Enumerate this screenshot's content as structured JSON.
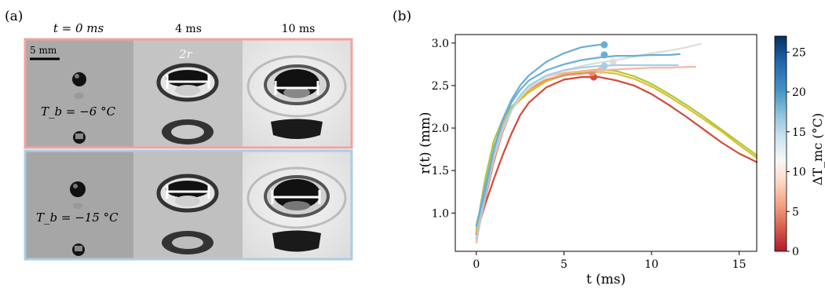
{
  "panel_a": {
    "label": "(a)",
    "col_headers": [
      "t = 0 ms",
      "4 ms",
      "10 ms"
    ],
    "scale_bar": "5 mm",
    "diameter_label": "2r",
    "rows": [
      {
        "temp_label": "T_b = −6 °C",
        "frame_color": "#f0a3a0"
      },
      {
        "temp_label": "T_b = −15 °C",
        "frame_color": "#a9cde6"
      }
    ]
  },
  "panel_b": {
    "label": "(b)"
  },
  "chart_data": {
    "type": "line",
    "xlabel": "t (ms)",
    "ylabel": "r(t) (mm)",
    "xlim": [
      -1.2,
      16
    ],
    "ylim": [
      0.55,
      3.1
    ],
    "xticks": [
      0,
      5,
      10,
      15
    ],
    "yticks": [
      1.0,
      1.5,
      2.0,
      2.5,
      3.0
    ],
    "grid": false,
    "colorbar": {
      "label": "ΔT_mc (°C)",
      "range": [
        0,
        27
      ],
      "ticks": [
        0,
        5,
        10,
        15,
        20,
        25
      ],
      "colormap": [
        "#b2182b",
        "#d6604d",
        "#f4a582",
        "#fddbc7",
        "#f7f7f7",
        "#d1e5f0",
        "#92c5de",
        "#4393c3",
        "#2166ac",
        "#053061"
      ]
    },
    "series": [
      {
        "color": "#d24a3b",
        "x": [
          0,
          0.5,
          1.0,
          1.5,
          2.0,
          2.5,
          3.0,
          4.0,
          5.0,
          6.0,
          7.0,
          8.0,
          9.0,
          10.0,
          11.0,
          12.0,
          13.0,
          14.0,
          15.0,
          16.0
        ],
        "y": [
          0.75,
          1.1,
          1.4,
          1.68,
          1.93,
          2.15,
          2.3,
          2.48,
          2.57,
          2.6,
          2.6,
          2.56,
          2.5,
          2.4,
          2.27,
          2.13,
          1.98,
          1.83,
          1.7,
          1.6
        ],
        "marker": [
          6.7,
          2.6
        ]
      },
      {
        "color": "#a9c93a",
        "x": [
          0,
          0.5,
          1.0,
          1.5,
          2.0,
          2.5,
          3.0,
          4.0,
          5.0,
          6.0,
          7.0,
          8.0,
          9.0,
          10.0,
          11.0,
          12.0,
          13.0,
          14.0,
          15.0,
          16.0
        ],
        "y": [
          0.8,
          1.4,
          1.85,
          2.1,
          2.25,
          2.35,
          2.43,
          2.56,
          2.63,
          2.67,
          2.69,
          2.67,
          2.61,
          2.52,
          2.4,
          2.27,
          2.13,
          1.98,
          1.83,
          1.68
        ]
      },
      {
        "color": "#e2bd2c",
        "x": [
          0,
          0.5,
          1.0,
          1.5,
          2.0,
          2.5,
          3.0,
          4.0,
          5.0,
          6.0,
          7.0,
          8.0,
          9.0,
          10.0,
          11.0,
          12.0,
          13.0,
          14.0,
          15.0,
          16.0
        ],
        "y": [
          0.78,
          1.3,
          1.78,
          2.05,
          2.22,
          2.33,
          2.42,
          2.55,
          2.62,
          2.65,
          2.66,
          2.64,
          2.58,
          2.49,
          2.37,
          2.24,
          2.1,
          1.96,
          1.8,
          1.65
        ]
      },
      {
        "color": "#ef8b6e",
        "x": [
          0,
          0.5,
          1.0,
          1.5,
          2.0,
          2.5,
          3.0,
          4.0,
          5.0,
          6.0,
          6.5
        ],
        "y": [
          0.7,
          1.15,
          1.6,
          1.95,
          2.2,
          2.36,
          2.46,
          2.57,
          2.62,
          2.64,
          2.65
        ],
        "marker": [
          6.6,
          2.65
        ]
      },
      {
        "color": "#f4b89c",
        "x": [
          0,
          0.5,
          1.0,
          1.5,
          2.0,
          2.5,
          3.0,
          4.0,
          5.0,
          6.0,
          7.0,
          8.0,
          9.0,
          10.0,
          11.0,
          12.0,
          12.5
        ],
        "y": [
          0.65,
          1.2,
          1.7,
          2.0,
          2.22,
          2.37,
          2.48,
          2.6,
          2.65,
          2.67,
          2.68,
          2.69,
          2.7,
          2.71,
          2.71,
          2.72,
          2.72
        ],
        "marker": [
          7.1,
          2.68
        ]
      },
      {
        "color": "#dddddd",
        "x": [
          0,
          0.5,
          1.0,
          1.5,
          2.0,
          2.5,
          3.0,
          4.0,
          5.0,
          6.0,
          7.0,
          8.0,
          9.0,
          10.0,
          11.0,
          12.0,
          12.8
        ],
        "y": [
          0.7,
          1.2,
          1.65,
          1.98,
          2.2,
          2.36,
          2.47,
          2.6,
          2.68,
          2.73,
          2.77,
          2.8,
          2.84,
          2.88,
          2.91,
          2.95,
          2.99
        ],
        "marker": [
          7.8,
          2.78
        ]
      },
      {
        "color": "#a6cde3",
        "x": [
          0,
          0.5,
          1.0,
          1.5,
          2.0,
          2.5,
          3.0,
          4.0,
          5.0,
          6.0,
          7.0,
          8.0,
          9.0,
          10.0,
          11.0,
          11.5
        ],
        "y": [
          0.7,
          1.2,
          1.68,
          2.0,
          2.22,
          2.38,
          2.5,
          2.62,
          2.68,
          2.71,
          2.73,
          2.74,
          2.74,
          2.74,
          2.74,
          2.74
        ],
        "marker": [
          7.3,
          2.73
        ]
      },
      {
        "color": "#6aaed6",
        "x": [
          0,
          0.5,
          1.0,
          1.5,
          2.0,
          2.5,
          3.0,
          4.0,
          5.0,
          6.0,
          7.0,
          8.0,
          9.0,
          10.0,
          11.0,
          11.6
        ],
        "y": [
          0.85,
          1.25,
          1.75,
          2.08,
          2.3,
          2.45,
          2.56,
          2.68,
          2.75,
          2.8,
          2.83,
          2.85,
          2.85,
          2.86,
          2.86,
          2.87
        ],
        "marker": [
          7.3,
          2.86
        ]
      },
      {
        "color": "#6aaed6",
        "x": [
          0,
          0.5,
          1.0,
          1.5,
          2.0,
          2.5,
          3.0,
          4.0,
          5.0,
          6.0,
          7.0,
          7.3
        ],
        "y": [
          0.85,
          1.3,
          1.75,
          2.1,
          2.33,
          2.5,
          2.62,
          2.78,
          2.88,
          2.95,
          2.98,
          2.98
        ],
        "marker": [
          7.3,
          2.98
        ]
      }
    ]
  }
}
